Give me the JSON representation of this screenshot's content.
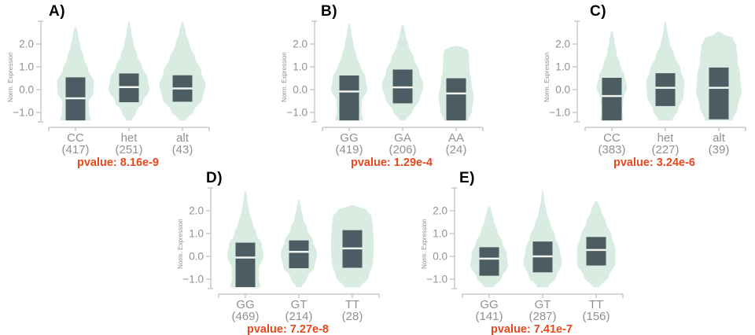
{
  "colors": {
    "violin_fill": "#d8ece2",
    "box_fill": "#4d5c63",
    "median_line": "#f0f5f2",
    "axis_line": "#c6cac8",
    "tick_label": "#8f9390",
    "category_label": "#8f9390",
    "pvalue_text": "#e8481c",
    "panel_letter": "#000000"
  },
  "chart_data": [
    {
      "type": "violin",
      "panel": "A)",
      "ylabel": "Norm. Expression",
      "ylim": [
        -1.45,
        3.0
      ],
      "yticks": [
        {
          "v": 2.0,
          "label": "2.0"
        },
        {
          "v": 1.0,
          "label": "1.0"
        },
        {
          "v": 0.0,
          "label": "0.0"
        },
        {
          "v": -1.0,
          "label": "−1.0"
        }
      ],
      "pvalue_label": "pvalue: 8.16e-9",
      "categories": [
        "CC",
        "het",
        "alt"
      ],
      "counts": [
        417,
        251,
        43
      ],
      "series": [
        {
          "label": "CC",
          "count_label": "(417)",
          "box": {
            "lo": -1.35,
            "hi": 0.54,
            "med": -0.38
          },
          "profile": [
            [
              -1.35,
              0.55
            ],
            [
              -1.0,
              0.5
            ],
            [
              -0.55,
              0.47
            ],
            [
              -0.1,
              0.66
            ],
            [
              0.35,
              0.67
            ],
            [
              0.9,
              0.45
            ],
            [
              1.4,
              0.3
            ],
            [
              1.9,
              0.18
            ],
            [
              2.35,
              0.1
            ],
            [
              2.75,
              0.04
            ]
          ]
        },
        {
          "label": "het",
          "count_label": "(251)",
          "box": {
            "lo": -0.55,
            "hi": 0.71,
            "med": 0.11
          },
          "profile": [
            [
              -1.35,
              0.1
            ],
            [
              -1.0,
              0.26
            ],
            [
              -0.5,
              0.52
            ],
            [
              0.0,
              0.74
            ],
            [
              0.5,
              0.68
            ],
            [
              1.0,
              0.48
            ],
            [
              1.5,
              0.3
            ],
            [
              2.0,
              0.17
            ],
            [
              2.5,
              0.09
            ],
            [
              2.95,
              0.03
            ]
          ]
        },
        {
          "label": "alt",
          "count_label": "(43)",
          "box": {
            "lo": -0.53,
            "hi": 0.63,
            "med": 0.05
          },
          "profile": [
            [
              -1.35,
              0.12
            ],
            [
              -0.95,
              0.4
            ],
            [
              -0.4,
              0.73
            ],
            [
              0.2,
              0.84
            ],
            [
              0.8,
              0.68
            ],
            [
              1.4,
              0.46
            ],
            [
              2.0,
              0.25
            ],
            [
              2.5,
              0.12
            ],
            [
              2.95,
              0.04
            ]
          ]
        }
      ]
    },
    {
      "type": "violin",
      "panel": "B)",
      "ylabel": "Norm. Expression",
      "ylim": [
        -1.45,
        3.0
      ],
      "yticks": [
        {
          "v": 2.0,
          "label": "2.0"
        },
        {
          "v": 1.0,
          "label": "1.0"
        },
        {
          "v": 0.0,
          "label": "0.0"
        },
        {
          "v": -1.0,
          "label": "−1.0"
        }
      ],
      "pvalue_label": "pvalue: 1.29e-4",
      "categories": [
        "GG",
        "GA",
        "AA"
      ],
      "counts": [
        419,
        206,
        24
      ],
      "series": [
        {
          "label": "GG",
          "count_label": "(419)",
          "box": {
            "lo": -1.35,
            "hi": 0.62,
            "med": -0.08
          },
          "profile": [
            [
              -1.35,
              0.5
            ],
            [
              -0.95,
              0.45
            ],
            [
              -0.5,
              0.46
            ],
            [
              0.0,
              0.66
            ],
            [
              0.5,
              0.6
            ],
            [
              1.0,
              0.42
            ],
            [
              1.5,
              0.26
            ],
            [
              2.0,
              0.15
            ],
            [
              2.5,
              0.08
            ],
            [
              2.9,
              0.03
            ]
          ]
        },
        {
          "label": "GA",
          "count_label": "(206)",
          "box": {
            "lo": -0.6,
            "hi": 0.88,
            "med": 0.1
          },
          "profile": [
            [
              -1.35,
              0.1
            ],
            [
              -0.95,
              0.35
            ],
            [
              -0.4,
              0.63
            ],
            [
              0.2,
              0.76
            ],
            [
              0.8,
              0.6
            ],
            [
              1.4,
              0.4
            ],
            [
              1.9,
              0.22
            ],
            [
              2.4,
              0.1
            ],
            [
              2.85,
              0.04
            ]
          ]
        },
        {
          "label": "AA",
          "count_label": "(24)",
          "box": {
            "lo": -1.35,
            "hi": 0.5,
            "med": -0.17
          },
          "profile": [
            [
              -1.35,
              0.45
            ],
            [
              -0.9,
              0.58
            ],
            [
              -0.3,
              0.64
            ],
            [
              0.3,
              0.55
            ],
            [
              0.9,
              0.48
            ],
            [
              1.4,
              0.47
            ],
            [
              1.72,
              0.44
            ],
            [
              1.85,
              0.25
            ],
            [
              1.92,
              0.03
            ]
          ]
        }
      ]
    },
    {
      "type": "violin",
      "panel": "C)",
      "ylabel": "Norm. Expression",
      "ylim": [
        -1.45,
        3.0
      ],
      "yticks": [
        {
          "v": 2.0,
          "label": "2.0"
        },
        {
          "v": 1.0,
          "label": "1.0"
        },
        {
          "v": 0.0,
          "label": "0.0"
        },
        {
          "v": -1.0,
          "label": "−1.0"
        }
      ],
      "pvalue_label": "pvalue: 3.24e-6",
      "categories": [
        "CC",
        "het",
        "alt"
      ],
      "counts": [
        383,
        227,
        39
      ],
      "series": [
        {
          "label": "CC",
          "count_label": "(383)",
          "box": {
            "lo": -1.35,
            "hi": 0.52,
            "med": -0.28
          },
          "profile": [
            [
              -1.35,
              0.42
            ],
            [
              -0.9,
              0.38
            ],
            [
              -0.4,
              0.42
            ],
            [
              0.1,
              0.55
            ],
            [
              0.6,
              0.46
            ],
            [
              1.1,
              0.3
            ],
            [
              1.6,
              0.17
            ],
            [
              2.1,
              0.1
            ],
            [
              2.55,
              0.04
            ]
          ]
        },
        {
          "label": "het",
          "count_label": "(227)",
          "box": {
            "lo": -0.72,
            "hi": 0.72,
            "med": 0.08
          },
          "profile": [
            [
              -1.35,
              0.25
            ],
            [
              -0.9,
              0.45
            ],
            [
              -0.3,
              0.66
            ],
            [
              0.3,
              0.7
            ],
            [
              0.9,
              0.55
            ],
            [
              1.5,
              0.33
            ],
            [
              2.05,
              0.16
            ],
            [
              2.5,
              0.08
            ],
            [
              2.95,
              0.03
            ]
          ]
        },
        {
          "label": "alt",
          "count_label": "(39)",
          "box": {
            "lo": -1.3,
            "hi": 0.97,
            "med": 0.08
          },
          "profile": [
            [
              -1.35,
              0.5
            ],
            [
              -0.8,
              0.68
            ],
            [
              -0.1,
              0.82
            ],
            [
              0.6,
              0.78
            ],
            [
              1.3,
              0.68
            ],
            [
              1.9,
              0.64
            ],
            [
              2.25,
              0.52
            ],
            [
              2.45,
              0.15
            ],
            [
              2.55,
              0.03
            ]
          ]
        }
      ]
    },
    {
      "type": "violin",
      "panel": "D)",
      "ylabel": "Norm. Expression",
      "ylim": [
        -1.45,
        3.0
      ],
      "yticks": [
        {
          "v": 2.0,
          "label": "2.0"
        },
        {
          "v": 1.0,
          "label": "1.0"
        },
        {
          "v": 0.0,
          "label": "0.0"
        },
        {
          "v": -1.0,
          "label": "−1.0"
        }
      ],
      "pvalue_label": "pvalue: 7.27e-8",
      "categories": [
        "GG",
        "GT",
        "TT"
      ],
      "counts": [
        469,
        214,
        28
      ],
      "series": [
        {
          "label": "GG",
          "count_label": "(469)",
          "box": {
            "lo": -1.35,
            "hi": 0.6,
            "med": -0.05
          },
          "profile": [
            [
              -1.35,
              0.55
            ],
            [
              -0.95,
              0.48
            ],
            [
              -0.5,
              0.5
            ],
            [
              0.0,
              0.66
            ],
            [
              0.5,
              0.6
            ],
            [
              1.0,
              0.4
            ],
            [
              1.5,
              0.25
            ],
            [
              2.0,
              0.13
            ],
            [
              2.45,
              0.07
            ],
            [
              2.85,
              0.03
            ]
          ]
        },
        {
          "label": "GT",
          "count_label": "(214)",
          "box": {
            "lo": -0.52,
            "hi": 0.7,
            "med": 0.2
          },
          "profile": [
            [
              -1.35,
              0.1
            ],
            [
              -0.95,
              0.3
            ],
            [
              -0.4,
              0.58
            ],
            [
              0.15,
              0.66
            ],
            [
              0.7,
              0.5
            ],
            [
              1.2,
              0.3
            ],
            [
              1.7,
              0.15
            ],
            [
              2.1,
              0.08
            ],
            [
              2.45,
              0.03
            ]
          ]
        },
        {
          "label": "TT",
          "count_label": "(28)",
          "box": {
            "lo": -0.5,
            "hi": 1.15,
            "med": 0.35
          },
          "profile": [
            [
              -1.35,
              0.3
            ],
            [
              -0.9,
              0.6
            ],
            [
              -0.2,
              0.76
            ],
            [
              0.5,
              0.78
            ],
            [
              1.2,
              0.75
            ],
            [
              1.75,
              0.7
            ],
            [
              2.05,
              0.52
            ],
            [
              2.2,
              0.15
            ],
            [
              2.25,
              0.02
            ]
          ]
        }
      ]
    },
    {
      "type": "violin",
      "panel": "E)",
      "ylabel": "Norm. Expression",
      "ylim": [
        -1.45,
        3.0
      ],
      "yticks": [
        {
          "v": 2.0,
          "label": "2.0"
        },
        {
          "v": 1.0,
          "label": "1.0"
        },
        {
          "v": 0.0,
          "label": "0.0"
        },
        {
          "v": -1.0,
          "label": "−1.0"
        }
      ],
      "pvalue_label": "pvalue: 7.41e-7",
      "categories": [
        "GG",
        "GT",
        "TT"
      ],
      "counts": [
        141,
        287,
        156
      ],
      "series": [
        {
          "label": "GG",
          "count_label": "(141)",
          "box": {
            "lo": -0.85,
            "hi": 0.4,
            "med": -0.1
          },
          "profile": [
            [
              -1.35,
              0.18
            ],
            [
              -0.95,
              0.45
            ],
            [
              -0.4,
              0.68
            ],
            [
              0.1,
              0.64
            ],
            [
              0.6,
              0.48
            ],
            [
              1.1,
              0.3
            ],
            [
              1.6,
              0.16
            ],
            [
              2.0,
              0.08
            ],
            [
              2.2,
              0.03
            ]
          ]
        },
        {
          "label": "GT",
          "count_label": "(287)",
          "box": {
            "lo": -0.7,
            "hi": 0.65,
            "med": 0.0
          },
          "profile": [
            [
              -1.35,
              0.2
            ],
            [
              -0.9,
              0.5
            ],
            [
              -0.3,
              0.7
            ],
            [
              0.3,
              0.62
            ],
            [
              0.9,
              0.45
            ],
            [
              1.4,
              0.28
            ],
            [
              1.9,
              0.15
            ],
            [
              2.4,
              0.07
            ],
            [
              2.9,
              0.02
            ]
          ]
        },
        {
          "label": "TT",
          "count_label": "(156)",
          "box": {
            "lo": -0.4,
            "hi": 0.85,
            "med": 0.28
          },
          "profile": [
            [
              -1.35,
              0.12
            ],
            [
              -0.9,
              0.45
            ],
            [
              -0.3,
              0.7
            ],
            [
              0.3,
              0.7
            ],
            [
              0.9,
              0.56
            ],
            [
              1.5,
              0.35
            ],
            [
              2.0,
              0.18
            ],
            [
              2.4,
              0.06
            ]
          ]
        }
      ]
    }
  ]
}
